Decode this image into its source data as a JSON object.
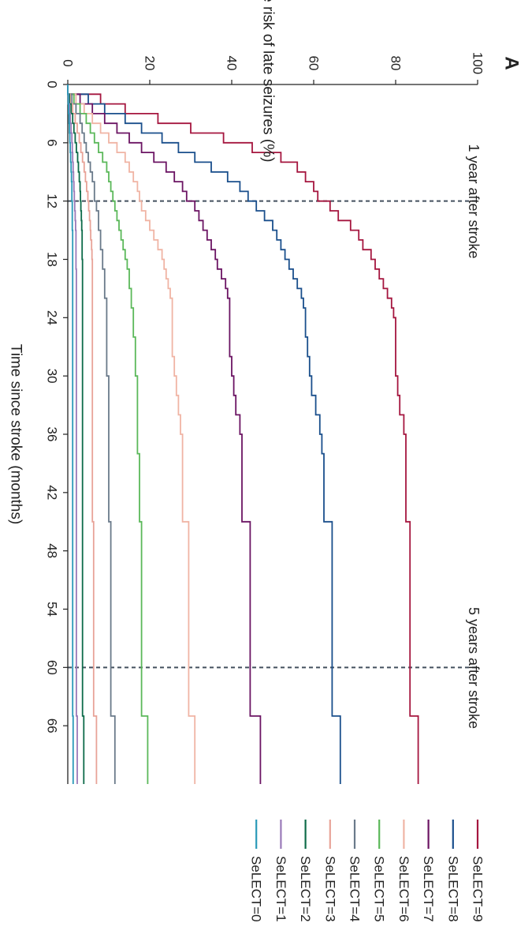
{
  "chart_data": {
    "type": "line",
    "panel_label": "A",
    "xlabel": "Time since stroke (months)",
    "ylabel": "Cumulative absolute risk of late seizures (%)",
    "xlim": [
      0,
      72
    ],
    "ylim": [
      0,
      100
    ],
    "x_ticks": [
      "0",
      "6",
      "12",
      "18",
      "24",
      "30",
      "36",
      "42",
      "48",
      "54",
      "60",
      "66"
    ],
    "y_ticks": [
      "0",
      "20",
      "40",
      "60",
      "80",
      "100"
    ],
    "x_tick_values": [
      0,
      6,
      12,
      18,
      24,
      30,
      36,
      42,
      48,
      54,
      60,
      66
    ],
    "y_tick_values": [
      0,
      20,
      40,
      60,
      80,
      100
    ],
    "reference_lines": [
      {
        "x": 12,
        "label": "1 year after stroke"
      },
      {
        "x": 60,
        "label": "5 years after stroke"
      }
    ],
    "x": [
      0,
      1,
      2,
      3,
      4,
      5,
      6,
      7,
      8,
      9,
      10,
      11,
      12,
      13,
      14,
      15,
      16,
      17,
      18,
      19,
      20,
      21,
      22,
      23,
      24,
      26,
      28,
      30,
      32,
      34,
      36,
      38,
      40,
      42,
      44,
      45,
      46,
      48,
      52,
      56,
      60,
      64,
      65,
      66,
      68,
      70,
      72
    ],
    "series": [
      {
        "name": "SeLECT=9",
        "color": "#a5163f",
        "values": [
          0,
          8,
          14,
          22,
          30,
          38,
          45,
          52,
          56,
          58,
          60,
          61,
          64,
          66,
          69,
          71,
          72,
          74,
          75,
          76,
          77,
          78,
          79,
          79.5,
          80,
          80,
          80,
          80.5,
          81,
          82,
          82.5,
          82.5,
          82.5,
          82.5,
          82.5,
          83.5,
          83.5,
          83.5,
          83.5,
          83.5,
          83.5,
          83.5,
          85.5,
          85.5,
          85.5,
          85.5,
          85.5
        ]
      },
      {
        "name": "SeLECT=8",
        "color": "#1a4f8c",
        "values": [
          0,
          5,
          9,
          14,
          18,
          23,
          27,
          31,
          35,
          39,
          42,
          44,
          46,
          48,
          50,
          51,
          52,
          53,
          54,
          55,
          56,
          57,
          57.5,
          58,
          58,
          58.5,
          59,
          59.5,
          60.5,
          61.5,
          62,
          62.5,
          62.5,
          62.5,
          62.5,
          64.5,
          64.5,
          64.5,
          64.5,
          64.5,
          64.5,
          64.5,
          66.5,
          66.5,
          66.5,
          66.5,
          66.5
        ]
      },
      {
        "name": "SeLECT=7",
        "color": "#6b1463",
        "values": [
          0,
          3,
          6,
          9,
          12,
          15,
          18,
          21,
          24,
          26,
          28,
          29,
          31,
          32,
          33,
          34,
          35,
          36,
          36.5,
          37.5,
          38.5,
          39,
          39.5,
          39.5,
          39.5,
          39.5,
          40,
          40.5,
          41,
          42,
          42.5,
          42.5,
          42.5,
          42.5,
          42.5,
          44.5,
          44.5,
          44.5,
          44.5,
          44.5,
          44.5,
          44.5,
          47,
          47,
          47,
          47,
          47
        ]
      },
      {
        "name": "SeLECT=6",
        "color": "#f0b4a4",
        "values": [
          0,
          2,
          4,
          6,
          8,
          10,
          12,
          14,
          15,
          16,
          17,
          17.5,
          18,
          19,
          20,
          21,
          22,
          23,
          23.5,
          24,
          24.5,
          25,
          25.5,
          25.5,
          25.5,
          25.5,
          26,
          26.5,
          27,
          27.5,
          28,
          28,
          28,
          28,
          28,
          29.5,
          29.5,
          29.5,
          29.5,
          29.5,
          29.5,
          29.5,
          31,
          31,
          31,
          31,
          31
        ]
      },
      {
        "name": "SeLECT=5",
        "color": "#5bb85a",
        "values": [
          0,
          1.5,
          3,
          4.5,
          5.5,
          6.5,
          7.5,
          8.5,
          9.5,
          10,
          10.5,
          11,
          11.5,
          12,
          12.5,
          13,
          13.5,
          14,
          14.5,
          15,
          15,
          15.5,
          15.5,
          16,
          16,
          16.5,
          16.5,
          17,
          17,
          17,
          17,
          17.5,
          17.5,
          17.5,
          17.5,
          18,
          18,
          18,
          18,
          18,
          18,
          18,
          19.5,
          19.5,
          19.5,
          19.5,
          19.5
        ]
      },
      {
        "name": "SeLECT=4",
        "color": "#6a7a8a",
        "values": [
          0,
          1,
          2,
          3,
          3.5,
          4,
          4.5,
          5,
          5.5,
          6,
          6.5,
          6.5,
          7,
          7.5,
          7.5,
          8,
          8,
          8.5,
          8.5,
          9,
          9,
          9,
          9.5,
          9.5,
          9.5,
          9.5,
          9.5,
          10,
          10,
          10,
          10,
          10,
          10,
          10,
          10,
          10.5,
          10.5,
          10.5,
          10.5,
          10.5,
          10.5,
          10.5,
          11.5,
          11.5,
          11.5,
          11.5,
          11.5
        ]
      },
      {
        "name": "SeLECT=3",
        "color": "#e8a398",
        "values": [
          0,
          0.6,
          1.2,
          1.8,
          2.3,
          2.8,
          3.2,
          3.6,
          4,
          4.3,
          4.6,
          4.9,
          5.1,
          5.3,
          5.5,
          5.6,
          5.8,
          5.9,
          6,
          6,
          6,
          6,
          6,
          6,
          6,
          6,
          6,
          6,
          6,
          6,
          6,
          6,
          6,
          6,
          6,
          6.3,
          6.3,
          6.3,
          6.3,
          6.3,
          6.3,
          6.3,
          7,
          7,
          7,
          7,
          7
        ]
      },
      {
        "name": "SeLECT=2",
        "color": "#0e6b4a",
        "values": [
          0,
          0.4,
          0.8,
          1.2,
          1.5,
          1.8,
          2.1,
          2.4,
          2.6,
          2.8,
          3,
          3.1,
          3.2,
          3.3,
          3.4,
          3.5,
          3.5,
          3.5,
          3.6,
          3.6,
          3.6,
          3.6,
          3.6,
          3.6,
          3.6,
          3.6,
          3.6,
          3.6,
          3.6,
          3.6,
          3.6,
          3.6,
          3.6,
          3.6,
          3.6,
          3.6,
          3.6,
          3.6,
          3.6,
          3.6,
          3.6,
          3.6,
          3.9,
          3.9,
          3.9,
          3.9,
          3.9
        ]
      },
      {
        "name": "SeLECT=1",
        "color": "#9a7ab8",
        "values": [
          0,
          0.2,
          0.4,
          0.6,
          0.8,
          1,
          1.1,
          1.2,
          1.3,
          1.4,
          1.5,
          1.6,
          1.7,
          1.8,
          1.9,
          2,
          2,
          2,
          2,
          2.1,
          2.1,
          2.1,
          2.1,
          2.1,
          2.1,
          2.1,
          2.1,
          2.1,
          2.1,
          2.1,
          2.1,
          2.1,
          2.1,
          2.1,
          2.1,
          2.1,
          2.1,
          2.1,
          2.1,
          2.1,
          2.1,
          2.1,
          2.3,
          2.3,
          2.3,
          2.3,
          2.3
        ]
      },
      {
        "name": "SeLECT=0",
        "color": "#2a9ab8",
        "values": [
          0,
          0.1,
          0.2,
          0.3,
          0.4,
          0.5,
          0.6,
          0.7,
          0.8,
          0.9,
          1,
          1,
          1.1,
          1.1,
          1.1,
          1.2,
          1.2,
          1.2,
          1.2,
          1.2,
          1.2,
          1.2,
          1.2,
          1.2,
          1.2,
          1.2,
          1.2,
          1.2,
          1.2,
          1.2,
          1.2,
          1.2,
          1.2,
          1.2,
          1.2,
          1.2,
          1.2,
          1.2,
          1.2,
          1.2,
          1.2,
          1.2,
          1.3,
          1.3,
          1.3,
          1.3,
          1.3
        ]
      }
    ],
    "legend_placement": "bottom"
  }
}
